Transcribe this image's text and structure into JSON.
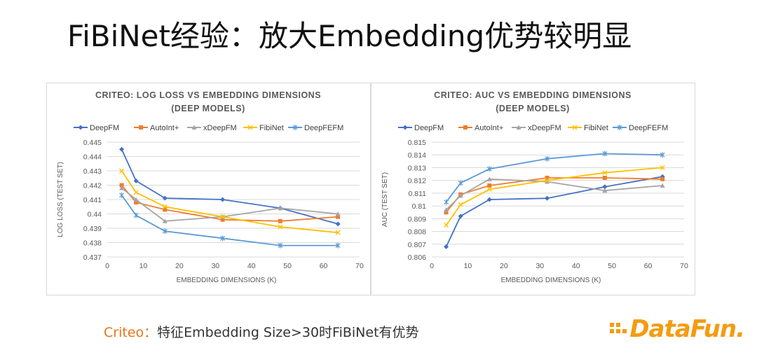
{
  "slide": {
    "title": "FiBiNet经验：放大Embedding优势较明显",
    "note_prefix": "Criteo：",
    "note_text": "特征Embedding Size>30时FiBiNet有优势",
    "logo": "DataFun."
  },
  "colors": {
    "DeepFM": "#4472c4",
    "AutoInt+": "#ed7d31",
    "xDeepFM": "#a5a5a5",
    "FibiNet": "#ffc000",
    "DeepFEFM": "#5b9bd5"
  },
  "chart_data": [
    {
      "type": "line",
      "title": "CRITEO: LOG LOSS VS EMBEDDING DIMENSIONS",
      "subtitle": "(DEEP MODELS)",
      "xlabel": "EMBEDDING DIMENSIONS (K)",
      "ylabel": "LOG LOSS (TEST SET)",
      "xlim": [
        0,
        70
      ],
      "ylim": [
        0.437,
        0.445
      ],
      "xticks": [
        "0",
        "10",
        "20",
        "30",
        "40",
        "50",
        "60",
        "70"
      ],
      "yticks": [
        "0.437",
        "0.438",
        "0.439",
        "0.44",
        "0.441",
        "0.442",
        "0.443",
        "0.444",
        "0.445"
      ],
      "grid": true,
      "legend": "top",
      "x": [
        4,
        8,
        16,
        32,
        48,
        64
      ],
      "series": [
        {
          "name": "DeepFM",
          "marker": "diamond",
          "values": [
            0.4445,
            0.4423,
            0.4411,
            0.441,
            0.4404,
            0.4393
          ]
        },
        {
          "name": "AutoInt+",
          "marker": "square",
          "values": [
            0.442,
            0.4408,
            0.4403,
            0.4396,
            0.4395,
            0.4398
          ]
        },
        {
          "name": "xDeepFM",
          "marker": "triangle",
          "values": [
            0.4418,
            0.441,
            0.4395,
            0.4398,
            0.4404,
            0.44
          ]
        },
        {
          "name": "FibiNet",
          "marker": "x",
          "values": [
            0.443,
            0.4415,
            0.4405,
            0.4398,
            0.4391,
            0.4387
          ]
        },
        {
          "name": "DeepFEFM",
          "marker": "star",
          "values": [
            0.4413,
            0.4399,
            0.4388,
            0.4383,
            0.4378,
            0.4378
          ]
        }
      ]
    },
    {
      "type": "line",
      "title": "CRITEO: AUC VS EMBEDDING DIMENSIONS",
      "subtitle": "(DEEP MODELS)",
      "xlabel": "EMBEDDING DIMENSIONS (K)",
      "ylabel": "AUC (TEST SET)",
      "xlim": [
        0,
        70
      ],
      "ylim": [
        0.806,
        0.815
      ],
      "xticks": [
        "0",
        "10",
        "20",
        "30",
        "40",
        "50",
        "60",
        "70"
      ],
      "yticks": [
        "0.806",
        "0.807",
        "0.808",
        "0.809",
        "0.81",
        "0.811",
        "0.812",
        "0.813",
        "0.814",
        "0.815"
      ],
      "grid": true,
      "legend": "top",
      "x": [
        4,
        8,
        16,
        32,
        48,
        64
      ],
      "series": [
        {
          "name": "DeepFM",
          "marker": "diamond",
          "values": [
            0.8068,
            0.8092,
            0.8105,
            0.8106,
            0.8115,
            0.8123
          ]
        },
        {
          "name": "AutoInt+",
          "marker": "square",
          "values": [
            0.8095,
            0.8109,
            0.8116,
            0.8122,
            0.8122,
            0.8121
          ]
        },
        {
          "name": "xDeepFM",
          "marker": "triangle",
          "values": [
            0.8097,
            0.8108,
            0.8121,
            0.8119,
            0.8112,
            0.8116
          ]
        },
        {
          "name": "FibiNet",
          "marker": "x",
          "values": [
            0.8085,
            0.8101,
            0.8113,
            0.812,
            0.8126,
            0.813
          ]
        },
        {
          "name": "DeepFEFM",
          "marker": "star",
          "values": [
            0.8103,
            0.8118,
            0.8129,
            0.8137,
            0.8141,
            0.814
          ]
        }
      ]
    }
  ]
}
